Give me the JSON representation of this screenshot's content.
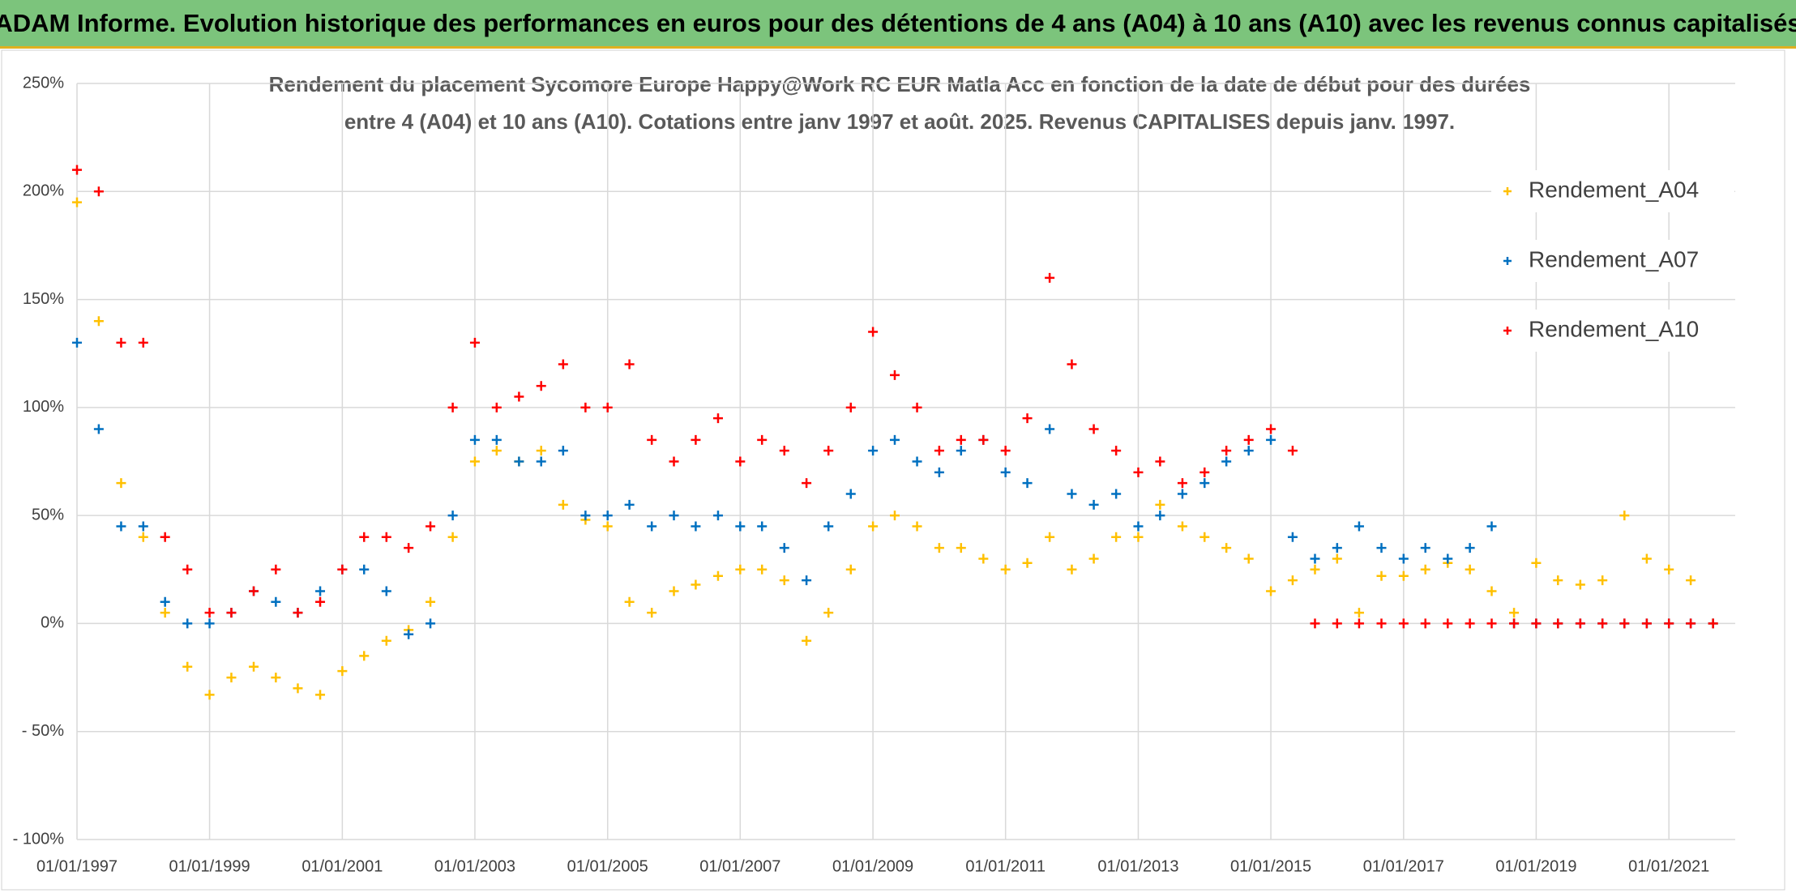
{
  "chart_data": {
    "type": "scatter",
    "title": "ADAM Informe. Evolution historique des performances en euros pour des détentions de 4 ans (A04) à 10 ans (A10) avec les revenus connus capitalisés",
    "subtitle": [
      "Rendement du placement Sycomore Europe Happy@Work RC EUR Matla Acc en fonction de la date de début pour des durées",
      "entre 4 (A04) et 10 ans (A10). Cotations entre janv 1997 et août. 2025. Revenus CAPITALISES depuis janv. 1997."
    ],
    "x": [
      "1997-01-01",
      "1997-05-01",
      "1997-09-01",
      "1998-01-01",
      "1998-05-01",
      "1998-09-01",
      "1999-01-01",
      "1999-05-01",
      "1999-09-01",
      "2000-01-01",
      "2000-05-01",
      "2000-09-01",
      "2001-01-01",
      "2001-05-01",
      "2001-09-01",
      "2002-01-01",
      "2002-05-01",
      "2002-09-01",
      "2003-01-01",
      "2003-05-01",
      "2003-09-01",
      "2004-01-01",
      "2004-05-01",
      "2004-09-01",
      "2005-01-01",
      "2005-05-01",
      "2005-09-01",
      "2006-01-01",
      "2006-05-01",
      "2006-09-01",
      "2007-01-01",
      "2007-05-01",
      "2007-09-01",
      "2008-01-01",
      "2008-05-01",
      "2008-09-01",
      "2009-01-01",
      "2009-05-01",
      "2009-09-01",
      "2010-01-01",
      "2010-05-01",
      "2010-09-01",
      "2011-01-01",
      "2011-05-01",
      "2011-09-01",
      "2012-01-01",
      "2012-05-01",
      "2012-09-01",
      "2013-01-01",
      "2013-05-01",
      "2013-09-01",
      "2014-01-01",
      "2014-05-01",
      "2014-09-01",
      "2015-01-01",
      "2015-05-01",
      "2015-09-01",
      "2016-01-01",
      "2016-05-01",
      "2016-09-01",
      "2017-01-01",
      "2017-05-01",
      "2017-09-01",
      "2018-01-01",
      "2018-05-01",
      "2018-09-01",
      "2019-01-01",
      "2019-05-01",
      "2019-09-01",
      "2020-01-01",
      "2020-05-01",
      "2020-09-01",
      "2021-01-01",
      "2021-05-01",
      "2021-09-01"
    ],
    "series": [
      {
        "name": "Rendement_A04",
        "color": "#ffc000",
        "values": [
          195,
          140,
          65,
          40,
          5,
          -20,
          -33,
          -25,
          -20,
          -25,
          -30,
          -33,
          -22,
          -15,
          -8,
          -3,
          10,
          40,
          75,
          80,
          75,
          80,
          55,
          48,
          45,
          10,
          5,
          15,
          18,
          22,
          25,
          25,
          20,
          -8,
          5,
          25,
          45,
          50,
          45,
          35,
          35,
          30,
          25,
          28,
          40,
          25,
          30,
          40,
          40,
          55,
          45,
          40,
          35,
          30,
          15,
          20,
          25,
          30,
          5,
          22,
          22,
          25,
          28,
          25,
          15,
          5,
          28,
          20,
          18,
          20,
          50,
          30,
          25,
          20,
          0
        ]
      },
      {
        "name": "Rendement_A07",
        "color": "#0070c0",
        "values": [
          130,
          90,
          45,
          45,
          10,
          0,
          0,
          5,
          15,
          10,
          5,
          15,
          25,
          25,
          15,
          -5,
          0,
          50,
          85,
          85,
          75,
          75,
          80,
          50,
          50,
          55,
          45,
          50,
          45,
          50,
          45,
          45,
          35,
          20,
          45,
          60,
          80,
          85,
          75,
          70,
          80,
          85,
          70,
          65,
          90,
          60,
          55,
          60,
          45,
          50,
          60,
          65,
          75,
          80,
          85,
          40,
          30,
          35,
          45,
          35,
          30,
          35,
          30,
          35,
          45,
          0,
          0,
          0,
          0,
          0,
          0,
          0,
          0,
          0,
          0
        ]
      },
      {
        "name": "Rendement_A10",
        "color": "#ff0000",
        "values": [
          210,
          200,
          130,
          130,
          40,
          25,
          5,
          5,
          15,
          25,
          5,
          10,
          25,
          40,
          40,
          35,
          45,
          100,
          130,
          100,
          105,
          110,
          120,
          100,
          100,
          120,
          85,
          75,
          85,
          95,
          75,
          85,
          80,
          65,
          80,
          100,
          135,
          115,
          100,
          80,
          85,
          85,
          80,
          95,
          160,
          120,
          90,
          80,
          70,
          75,
          65,
          70,
          80,
          85,
          90,
          80,
          0,
          0,
          0,
          0,
          0,
          0,
          0,
          0,
          0,
          0,
          0,
          0,
          0,
          0,
          0,
          0,
          0,
          0,
          0
        ]
      }
    ],
    "xlim": [
      "1997-01-01",
      "2022-01-01"
    ],
    "xticks": [
      {
        "value": "1997-01-01",
        "label": "01/01/1997"
      },
      {
        "value": "1999-01-01",
        "label": "01/01/1999"
      },
      {
        "value": "2001-01-01",
        "label": "01/01/2001"
      },
      {
        "value": "2003-01-01",
        "label": "01/01/2003"
      },
      {
        "value": "2005-01-01",
        "label": "01/01/2005"
      },
      {
        "value": "2007-01-01",
        "label": "01/01/2007"
      },
      {
        "value": "2009-01-01",
        "label": "01/01/2009"
      },
      {
        "value": "2011-01-01",
        "label": "01/01/2011"
      },
      {
        "value": "2013-01-01",
        "label": "01/01/2013"
      },
      {
        "value": "2015-01-01",
        "label": "01/01/2015"
      },
      {
        "value": "2017-01-01",
        "label": "01/01/2017"
      },
      {
        "value": "2019-01-01",
        "label": "01/01/2019"
      },
      {
        "value": "2021-01-01",
        "label": "01/01/2021"
      }
    ],
    "ylim": [
      -100,
      250
    ],
    "yticks": [
      {
        "value": -100,
        "label": "- 100%"
      },
      {
        "value": -50,
        "label": "- 50%"
      },
      {
        "value": 0,
        "label": "0%"
      },
      {
        "value": 50,
        "label": "50%"
      },
      {
        "value": 100,
        "label": "100%"
      },
      {
        "value": 150,
        "label": "150%"
      },
      {
        "value": 200,
        "label": "200%"
      },
      {
        "value": 250,
        "label": "250%"
      }
    ],
    "grid": true,
    "legend": "right"
  }
}
